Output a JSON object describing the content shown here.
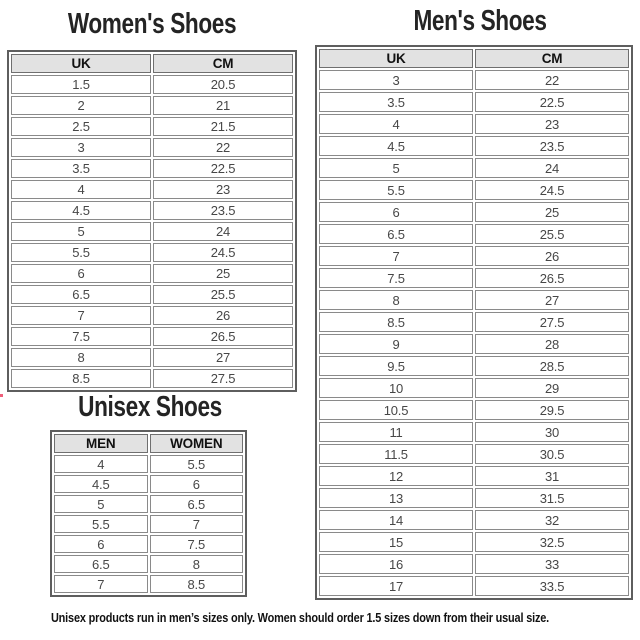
{
  "chart_data": [
    {
      "type": "table",
      "title": "Women's Shoes",
      "columns": [
        "UK",
        "CM"
      ],
      "rows": [
        [
          "1.5",
          "20.5"
        ],
        [
          "2",
          "21"
        ],
        [
          "2.5",
          "21.5"
        ],
        [
          "3",
          "22"
        ],
        [
          "3.5",
          "22.5"
        ],
        [
          "4",
          "23"
        ],
        [
          "4.5",
          "23.5"
        ],
        [
          "5",
          "24"
        ],
        [
          "5.5",
          "24.5"
        ],
        [
          "6",
          "25"
        ],
        [
          "6.5",
          "25.5"
        ],
        [
          "7",
          "26"
        ],
        [
          "7.5",
          "26.5"
        ],
        [
          "8",
          "27"
        ],
        [
          "8.5",
          "27.5"
        ]
      ]
    },
    {
      "type": "table",
      "title": "Men's Shoes",
      "columns": [
        "UK",
        "CM"
      ],
      "rows": [
        [
          "3",
          "22"
        ],
        [
          "3.5",
          "22.5"
        ],
        [
          "4",
          "23"
        ],
        [
          "4.5",
          "23.5"
        ],
        [
          "5",
          "24"
        ],
        [
          "5.5",
          "24.5"
        ],
        [
          "6",
          "25"
        ],
        [
          "6.5",
          "25.5"
        ],
        [
          "7",
          "26"
        ],
        [
          "7.5",
          "26.5"
        ],
        [
          "8",
          "27"
        ],
        [
          "8.5",
          "27.5"
        ],
        [
          "9",
          "28"
        ],
        [
          "9.5",
          "28.5"
        ],
        [
          "10",
          "29"
        ],
        [
          "10.5",
          "29.5"
        ],
        [
          "11",
          "30"
        ],
        [
          "11.5",
          "30.5"
        ],
        [
          "12",
          "31"
        ],
        [
          "13",
          "31.5"
        ],
        [
          "14",
          "32"
        ],
        [
          "15",
          "32.5"
        ],
        [
          "16",
          "33"
        ],
        [
          "17",
          "33.5"
        ]
      ]
    },
    {
      "type": "table",
      "title": "Unisex Shoes",
      "columns": [
        "MEN",
        "WOMEN"
      ],
      "rows": [
        [
          "4",
          "5.5"
        ],
        [
          "4.5",
          "6"
        ],
        [
          "5",
          "6.5"
        ],
        [
          "5.5",
          "7"
        ],
        [
          "6",
          "7.5"
        ],
        [
          "6.5",
          "8"
        ],
        [
          "7",
          "8.5"
        ]
      ]
    }
  ],
  "footer": {
    "note": "Unisex products run in men’s sizes only. Women should order 1.5 sizes down from their usual size."
  },
  "colors": {
    "header_bg": "#e2e2e2",
    "header_border": "#6f6f6f",
    "outer_border": "#5e5e5e",
    "cell_border": "#8a8a8a",
    "cell_text": "#474747",
    "title_text": "#242424",
    "accent_mark": "#ee5f7a"
  }
}
